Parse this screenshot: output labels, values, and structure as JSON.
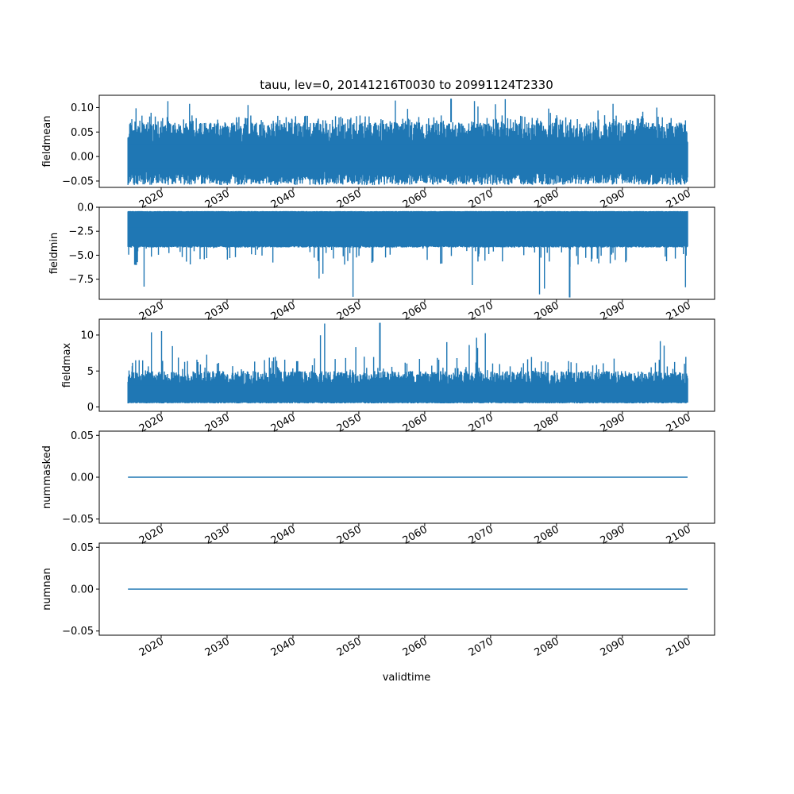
{
  "chart_data": {
    "type": "line",
    "title": "tauu, lev=0, 20141216T0030 to 20991124T2330",
    "xlabel": "validtime",
    "x_range": [
      "2014-12-16T00:30",
      "2099-11-24T23:30"
    ],
    "xlim": [
      2010.6,
      2104.0
    ],
    "x_ticks": [
      2020,
      2030,
      2040,
      2050,
      2060,
      2070,
      2080,
      2090,
      2100
    ],
    "x_tick_labels": [
      "2020",
      "2030",
      "2040",
      "2050",
      "2060",
      "2070",
      "2080",
      "2090",
      "2100"
    ],
    "line_color": "#1f77b4",
    "panels": [
      {
        "ylabel": "fieldmean",
        "ylim": [
          -0.063,
          0.125
        ],
        "y_ticks": [
          -0.05,
          0.0,
          0.05,
          0.1
        ],
        "y_tick_labels": [
          "−0.05",
          "0.00",
          "0.05",
          "0.10"
        ],
        "summary": {
          "typical_low": -0.03,
          "typical_high": 0.07,
          "min": -0.058,
          "max": 0.118
        },
        "show_x_labels": true
      },
      {
        "ylabel": "fieldmin",
        "ylim": [
          -9.6,
          0.0
        ],
        "y_ticks": [
          0.0,
          -2.5,
          -5.0,
          -7.5
        ],
        "y_tick_labels": [
          "0.0",
          "−2.5",
          "−5.0",
          "−7.5"
        ],
        "summary": {
          "typical_low": -4.2,
          "typical_high": -0.4,
          "min": -9.4,
          "max": -0.3
        },
        "show_x_labels": true
      },
      {
        "ylabel": "fieldmax",
        "ylim": [
          -0.6,
          12.2
        ],
        "y_ticks": [
          0,
          5,
          10
        ],
        "y_tick_labels": [
          "0",
          "5",
          "10"
        ],
        "summary": {
          "typical_low": 0.5,
          "typical_high": 5.0,
          "min": 0.3,
          "max": 11.7
        },
        "show_x_labels": true
      },
      {
        "ylabel": "nummasked",
        "ylim": [
          -0.055,
          0.055
        ],
        "y_ticks": [
          -0.05,
          0.0,
          0.05
        ],
        "y_tick_labels": [
          "−0.05",
          "0.00",
          "0.05"
        ],
        "summary": {
          "constant": 0.0
        },
        "show_x_labels": true
      },
      {
        "ylabel": "numnan",
        "ylim": [
          -0.055,
          0.055
        ],
        "y_ticks": [
          -0.05,
          0.0,
          0.05
        ],
        "y_tick_labels": [
          "−0.05",
          "0.00",
          "0.05"
        ],
        "summary": {
          "constant": 0.0
        },
        "show_x_labels": true
      }
    ]
  }
}
